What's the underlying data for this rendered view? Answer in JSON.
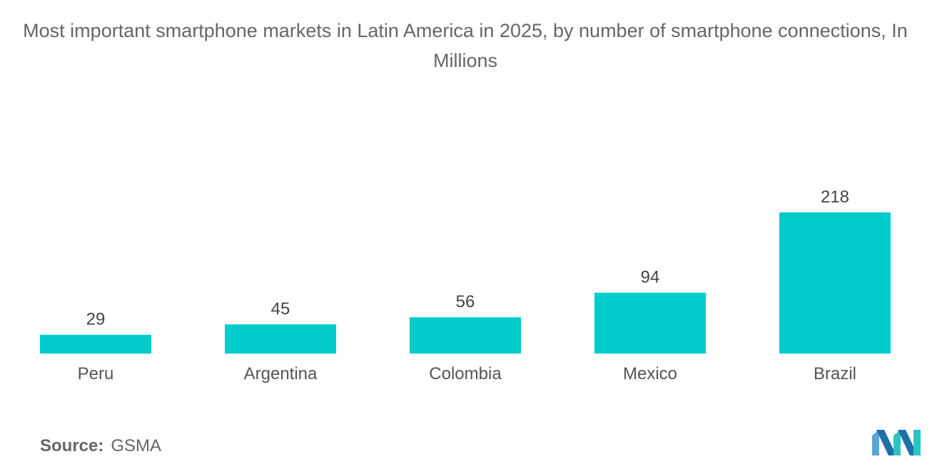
{
  "title": "Most important smartphone markets in Latin America in 2025, by number of smartphone connections, In Millions",
  "source": {
    "label": "Source:",
    "value": "GSMA"
  },
  "logo": {
    "icon": "mordor-intelligence-logo-icon",
    "colors": [
      "#5aa7d6",
      "#1f6fa8",
      "#2bc4c4"
    ]
  },
  "chart_data": {
    "type": "bar",
    "title": "Most important smartphone markets in Latin America in 2025, by number of smartphone connections, In Millions",
    "categories": [
      "Peru",
      "Argentina",
      "Colombia",
      "Mexico",
      "Brazil"
    ],
    "values": [
      29,
      45,
      56,
      94,
      218
    ],
    "xlabel": "",
    "ylabel": "",
    "ylim": [
      0,
      218
    ],
    "grid": false,
    "legend": "none",
    "bar_color": "#00cccc",
    "data_labels": true
  }
}
